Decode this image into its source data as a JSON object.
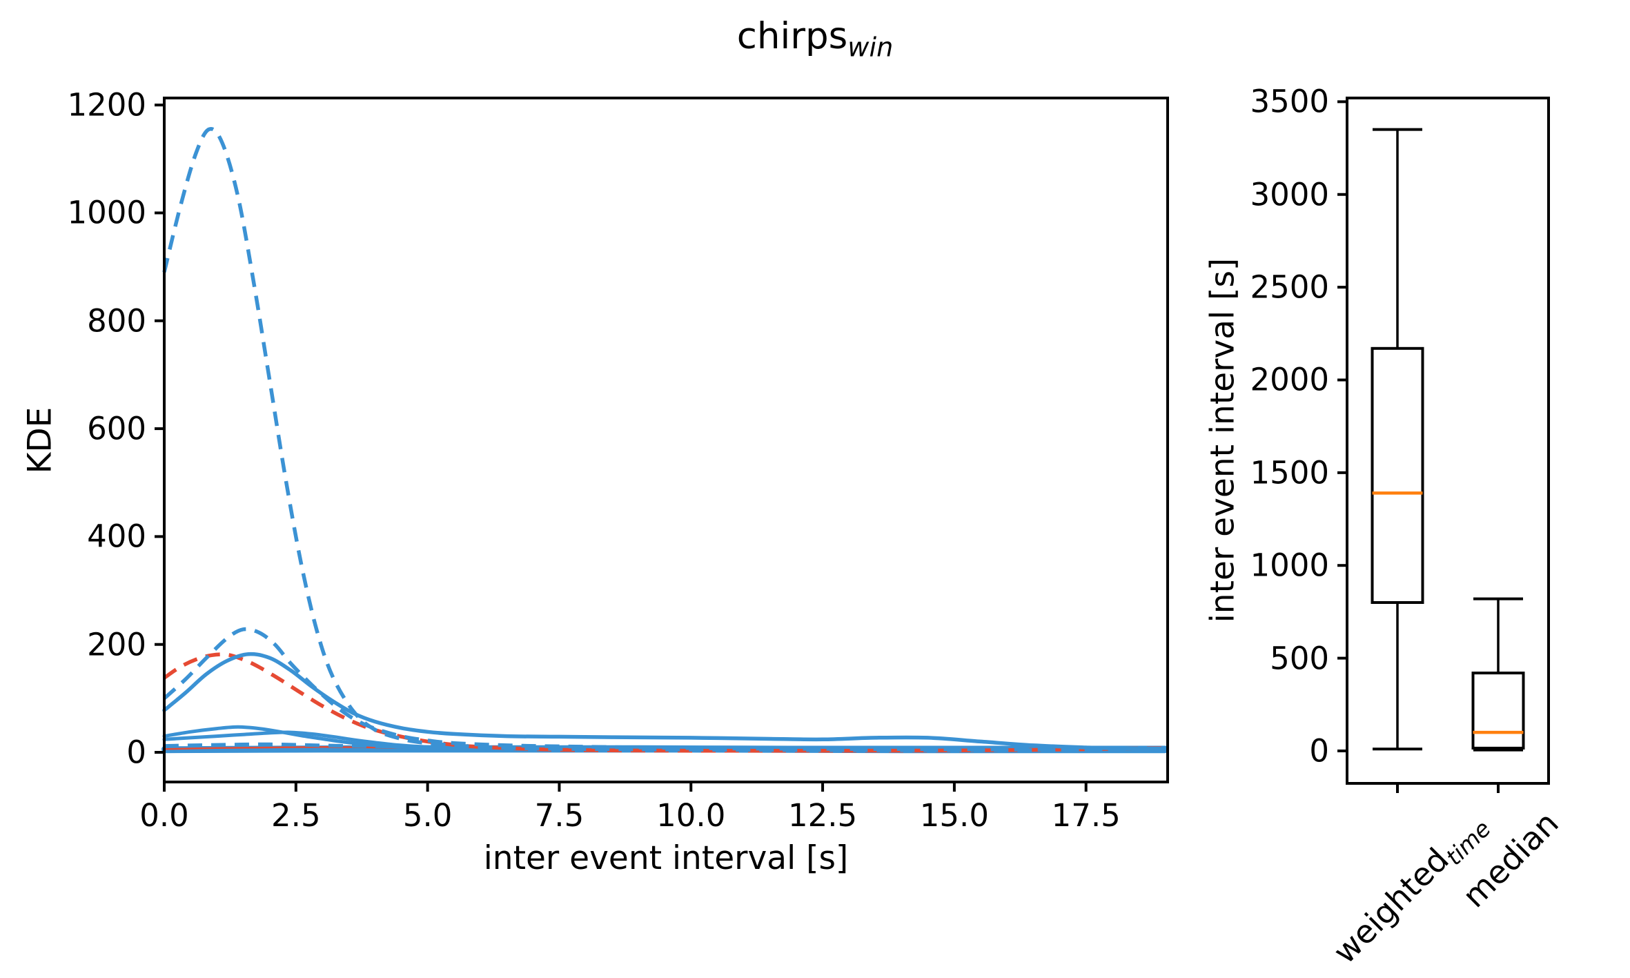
{
  "figure": {
    "title": {
      "base": "chirps",
      "subscript": "win"
    },
    "background": "#ffffff",
    "text_color": "#000000"
  },
  "colors": {
    "blue": "#3B92D4",
    "red": "#E64A33",
    "median_orange": "#ff7f0e",
    "box_black": "#000000"
  },
  "chart_data": [
    {
      "type": "line",
      "id": "kde-plot",
      "xlabel": "inter event interval [s]",
      "ylabel": "KDE",
      "xlim": [
        0,
        19.05
      ],
      "ylim": [
        -55,
        1213
      ],
      "grid": false,
      "legend": "none",
      "xticks": {
        "values": [
          0,
          2.5,
          5,
          7.5,
          10,
          12.5,
          15,
          17.5
        ],
        "labels": [
          "0.0",
          "2.5",
          "5.0",
          "7.5",
          "10.0",
          "12.5",
          "15.0",
          "17.5"
        ]
      },
      "yticks": {
        "values": [
          0,
          200,
          400,
          600,
          800,
          1000,
          1200
        ],
        "labels": [
          "0",
          "200",
          "400",
          "600",
          "800",
          "1000",
          "1200"
        ]
      },
      "series": [
        {
          "name": "near-zero-band-low",
          "color": "#3B92D4",
          "style": "solid",
          "width": 7,
          "points": [
            [
              0,
              3
            ],
            [
              3,
              4
            ],
            [
              6,
              4
            ],
            [
              10,
              4
            ],
            [
              14,
              3
            ],
            [
              19,
              3
            ]
          ]
        },
        {
          "name": "near-zero-band-high",
          "color": "#3B92D4",
          "style": "solid",
          "width": 8,
          "points": [
            [
              0,
              6
            ],
            [
              2,
              7
            ],
            [
              4,
              8
            ],
            [
              6,
              8
            ],
            [
              9,
              8
            ],
            [
              12,
              7
            ],
            [
              15,
              7
            ],
            [
              19,
              7
            ]
          ]
        },
        {
          "name": "red-solid-low",
          "color": "#E64A33",
          "style": "solid",
          "width": 2.5,
          "points": [
            [
              0,
              6
            ],
            [
              1,
              8
            ],
            [
              2,
              9
            ],
            [
              3,
              10
            ],
            [
              4,
              9
            ],
            [
              5,
              8
            ],
            [
              6,
              7
            ],
            [
              8,
              6
            ],
            [
              10,
              5
            ],
            [
              13,
              5
            ],
            [
              16,
              6
            ],
            [
              19,
              8
            ]
          ]
        },
        {
          "name": "blue-dashed-low",
          "color": "#3B92D4",
          "style": "dashed",
          "width": 5,
          "points": [
            [
              0,
              12
            ],
            [
              1,
              14
            ],
            [
              2,
              15
            ],
            [
              3,
              13
            ],
            [
              4,
              11
            ],
            [
              5,
              10
            ],
            [
              6,
              9
            ],
            [
              8,
              8
            ],
            [
              10,
              7
            ],
            [
              13,
              6
            ],
            [
              16,
              5
            ],
            [
              19,
              5
            ]
          ]
        },
        {
          "name": "blue-solid-small-early",
          "color": "#3B92D4",
          "style": "solid",
          "width": 5,
          "points": [
            [
              0,
              30
            ],
            [
              0.5,
              38
            ],
            [
              1,
              44
            ],
            [
              1.4,
              47
            ],
            [
              1.8,
              44
            ],
            [
              2.2,
              38
            ],
            [
              2.6,
              31
            ],
            [
              3,
              25
            ],
            [
              3.5,
              18
            ],
            [
              4,
              13
            ],
            [
              4.5,
              10
            ],
            [
              5.5,
              7
            ],
            [
              7,
              5
            ],
            [
              10,
              4
            ],
            [
              14,
              4
            ],
            [
              19,
              3
            ]
          ]
        },
        {
          "name": "blue-solid-small-late",
          "color": "#3B92D4",
          "style": "solid",
          "width": 5,
          "points": [
            [
              0,
              24
            ],
            [
              0.5,
              27
            ],
            [
              1,
              30
            ],
            [
              1.5,
              33
            ],
            [
              2,
              36
            ],
            [
              2.4,
              37
            ],
            [
              2.8,
              34
            ],
            [
              3.2,
              29
            ],
            [
              3.6,
              23
            ],
            [
              4,
              18
            ],
            [
              4.5,
              13
            ],
            [
              5,
              10
            ],
            [
              6,
              7
            ],
            [
              8,
              5
            ],
            [
              12,
              4
            ],
            [
              19,
              4
            ]
          ]
        },
        {
          "name": "red-dashed-main",
          "color": "#E64A33",
          "style": "dashed",
          "width": 5.5,
          "points": [
            [
              0,
              138
            ],
            [
              0.3,
              158
            ],
            [
              0.6,
              172
            ],
            [
              0.9,
              180
            ],
            [
              1.2,
              181
            ],
            [
              1.5,
              172
            ],
            [
              1.8,
              158
            ],
            [
              2.2,
              135
            ],
            [
              2.6,
              110
            ],
            [
              3,
              86
            ],
            [
              3.4,
              65
            ],
            [
              3.8,
              48
            ],
            [
              4.2,
              36
            ],
            [
              4.6,
              27
            ],
            [
              5,
              20
            ],
            [
              5.5,
              14
            ],
            [
              6,
              10
            ],
            [
              7,
              6
            ],
            [
              8,
              4
            ],
            [
              10,
              3
            ],
            [
              13,
              3
            ],
            [
              16,
              4
            ],
            [
              19,
              8
            ]
          ]
        },
        {
          "name": "blue-solid-main",
          "color": "#3B92D4",
          "style": "solid",
          "width": 5.5,
          "points": [
            [
              0,
              78
            ],
            [
              0.4,
              110
            ],
            [
              0.8,
              145
            ],
            [
              1.2,
              170
            ],
            [
              1.6,
              182
            ],
            [
              2,
              175
            ],
            [
              2.4,
              152
            ],
            [
              2.8,
              122
            ],
            [
              3.2,
              95
            ],
            [
              3.6,
              72
            ],
            [
              4,
              57
            ],
            [
              4.5,
              45
            ],
            [
              5,
              38
            ],
            [
              5.5,
              34
            ],
            [
              6.5,
              30
            ],
            [
              7.5,
              29
            ],
            [
              8.5,
              28
            ],
            [
              10,
              27
            ],
            [
              11.5,
              25
            ],
            [
              12.5,
              24
            ],
            [
              13.5,
              27
            ],
            [
              14.5,
              27
            ],
            [
              15.5,
              20
            ],
            [
              16.5,
              13
            ],
            [
              17.5,
              9
            ],
            [
              18.2,
              7
            ],
            [
              19,
              7
            ]
          ]
        },
        {
          "name": "blue-dashed-mid",
          "color": "#3B92D4",
          "style": "dashed",
          "width": 5.5,
          "points": [
            [
              0,
              100
            ],
            [
              0.4,
              135
            ],
            [
              0.8,
              175
            ],
            [
              1.2,
              212
            ],
            [
              1.5,
              228
            ],
            [
              1.8,
              222
            ],
            [
              2.1,
              200
            ],
            [
              2.4,
              165
            ],
            [
              2.8,
              125
            ],
            [
              3.2,
              90
            ],
            [
              3.6,
              62
            ],
            [
              4,
              44
            ],
            [
              4.5,
              30
            ],
            [
              5,
              22
            ],
            [
              5.5,
              17
            ],
            [
              6.5,
              13
            ],
            [
              7.5,
              11
            ],
            [
              9,
              9
            ],
            [
              11,
              7
            ],
            [
              14,
              6
            ],
            [
              17,
              5
            ],
            [
              19,
              5
            ]
          ]
        },
        {
          "name": "blue-dashed-big",
          "color": "#3B92D4",
          "style": "dashed",
          "width": 5.5,
          "points": [
            [
              0,
              890
            ],
            [
              0.3,
              1010
            ],
            [
              0.6,
              1110
            ],
            [
              0.85,
              1155
            ],
            [
              1.1,
              1130
            ],
            [
              1.4,
              1030
            ],
            [
              1.7,
              870
            ],
            [
              2,
              690
            ],
            [
              2.3,
              510
            ],
            [
              2.6,
              350
            ],
            [
              2.9,
              225
            ],
            [
              3.2,
              140
            ],
            [
              3.6,
              75
            ],
            [
              4,
              42
            ],
            [
              4.5,
              25
            ],
            [
              5,
              17
            ],
            [
              6,
              10
            ],
            [
              7,
              7
            ],
            [
              8,
              6
            ],
            [
              10,
              5
            ],
            [
              13,
              4
            ],
            [
              16,
              4
            ],
            [
              19,
              4
            ]
          ]
        }
      ]
    },
    {
      "type": "boxplot",
      "id": "iei-boxplot",
      "ylabel": "inter event interval [s]",
      "ylim": [
        -175,
        3520
      ],
      "yticks": {
        "values": [
          0,
          500,
          1000,
          1500,
          2000,
          2500,
          3000,
          3500
        ],
        "labels": [
          "0",
          "500",
          "1000",
          "1500",
          "2000",
          "2500",
          "3000",
          "3500"
        ]
      },
      "categories": [
        {
          "base": "weighted",
          "subscript": "time"
        },
        {
          "base": "median",
          "subscript": ""
        }
      ],
      "boxes": [
        {
          "whislo": 10,
          "q1": 800,
          "med": 1390,
          "q3": 2170,
          "whishi": 3350
        },
        {
          "whislo": 5,
          "q1": 15,
          "med": 100,
          "q3": 420,
          "whishi": 820
        }
      ],
      "box_color": "#000000",
      "median_color": "#ff7f0e"
    }
  ]
}
